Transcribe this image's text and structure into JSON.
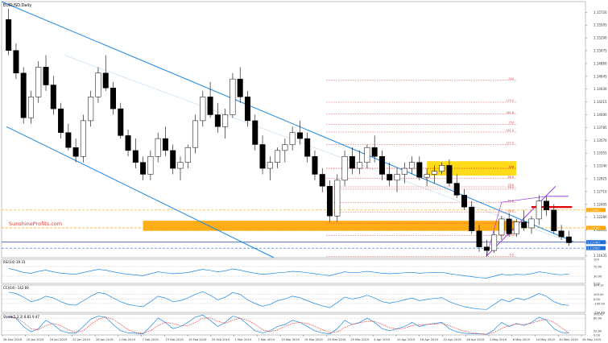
{
  "chart_data": [
    {
      "type": "candlestick",
      "title": "EURUSD,Daily",
      "watermark": "SunshineProfits.com",
      "x_dates": [
        "28 Dec 2018",
        "10 Jan 2019",
        "16 Jan 2019",
        "22 Jan 2019",
        "28 Jan 2019",
        "1 Feb 2019",
        "7 Feb 2019",
        "13 Feb 2019",
        "19 Feb 2019",
        "25 Feb 2019",
        "1 Mar 2019",
        "7 Mar 2019",
        "13 Mar 2019",
        "19 Mar 2019",
        "25 Mar 2019",
        "29 Mar 2019",
        "4 Apr 2019",
        "10 Apr 2019",
        "16 Apr 2019",
        "22 Apr 2019",
        "26 Apr 2019",
        "2 May 2019",
        "8 May 2019",
        "14 May 2019",
        "20 May 2019",
        "26 May 2019"
      ],
      "y_ticks": [
        "1.15720",
        "1.15505",
        "1.15290",
        "1.15075",
        "1.14860",
        "1.14645",
        "1.14430",
        "1.14215",
        "1.14000",
        "1.13785",
        "1.13570",
        "1.13355",
        "1.13140",
        "1.12925",
        "1.12710",
        "1.12495",
        "1.12280",
        "1.12065",
        "1.11850",
        "1.11635"
      ],
      "ylim": [
        1.116,
        1.159
      ],
      "price_labels": [
        {
          "text": "1.12400",
          "color": "#FFA500"
        },
        {
          "text": "1.12100",
          "color": "#FFA500"
        },
        {
          "text": "1.11700",
          "color": "#1E6FD9"
        },
        {
          "text": "1.11500",
          "color": "#1E6FD9"
        }
      ],
      "fib_labels": [
        "100",
        "0.0",
        "23.6",
        "38.2",
        "50.0",
        "61.8",
        "76.4",
        "78.6",
        "88.6",
        "100",
        "127.2",
        "141.4",
        "150",
        "161.8",
        "175.0",
        "200"
      ],
      "fib_prices": [
        1.131,
        1.1162,
        1.1197,
        1.1218,
        1.1236,
        1.1253,
        1.1275,
        1.1279,
        1.1293,
        1.131,
        1.135,
        1.1371,
        1.1384,
        1.1401,
        1.1421,
        1.1458
      ],
      "candles": [
        {
          "o": 1.156,
          "h": 1.1578,
          "l": 1.15,
          "c": 1.1508
        },
        {
          "o": 1.1508,
          "h": 1.152,
          "l": 1.146,
          "c": 1.147
        },
        {
          "o": 1.147,
          "h": 1.148,
          "l": 1.1385,
          "c": 1.1395
        },
        {
          "o": 1.1395,
          "h": 1.144,
          "l": 1.1385,
          "c": 1.143
        },
        {
          "o": 1.143,
          "h": 1.149,
          "l": 1.142,
          "c": 1.148
        },
        {
          "o": 1.148,
          "h": 1.15,
          "l": 1.144,
          "c": 1.145
        },
        {
          "o": 1.145,
          "h": 1.1465,
          "l": 1.14,
          "c": 1.141
        },
        {
          "o": 1.141,
          "h": 1.142,
          "l": 1.136,
          "c": 1.137
        },
        {
          "o": 1.137,
          "h": 1.1385,
          "l": 1.134,
          "c": 1.1345
        },
        {
          "o": 1.1345,
          "h": 1.136,
          "l": 1.132,
          "c": 1.133
        },
        {
          "o": 1.133,
          "h": 1.14,
          "l": 1.132,
          "c": 1.139
        },
        {
          "o": 1.139,
          "h": 1.144,
          "l": 1.138,
          "c": 1.143
        },
        {
          "o": 1.143,
          "h": 1.148,
          "l": 1.142,
          "c": 1.147
        },
        {
          "o": 1.147,
          "h": 1.15,
          "l": 1.144,
          "c": 1.1445
        },
        {
          "o": 1.1445,
          "h": 1.1455,
          "l": 1.14,
          "c": 1.141
        },
        {
          "o": 1.141,
          "h": 1.142,
          "l": 1.136,
          "c": 1.1365
        },
        {
          "o": 1.1365,
          "h": 1.1375,
          "l": 1.133,
          "c": 1.134
        },
        {
          "o": 1.134,
          "h": 1.136,
          "l": 1.131,
          "c": 1.132
        },
        {
          "o": 1.132,
          "h": 1.133,
          "l": 1.129,
          "c": 1.13
        },
        {
          "o": 1.13,
          "h": 1.134,
          "l": 1.129,
          "c": 1.133
        },
        {
          "o": 1.133,
          "h": 1.137,
          "l": 1.132,
          "c": 1.136
        },
        {
          "o": 1.136,
          "h": 1.138,
          "l": 1.133,
          "c": 1.134
        },
        {
          "o": 1.134,
          "h": 1.135,
          "l": 1.13,
          "c": 1.131
        },
        {
          "o": 1.131,
          "h": 1.133,
          "l": 1.129,
          "c": 1.132
        },
        {
          "o": 1.132,
          "h": 1.135,
          "l": 1.131,
          "c": 1.1345
        },
        {
          "o": 1.1345,
          "h": 1.14,
          "l": 1.1335,
          "c": 1.139
        },
        {
          "o": 1.139,
          "h": 1.144,
          "l": 1.138,
          "c": 1.143
        },
        {
          "o": 1.143,
          "h": 1.1455,
          "l": 1.1395,
          "c": 1.14
        },
        {
          "o": 1.14,
          "h": 1.142,
          "l": 1.137,
          "c": 1.138
        },
        {
          "o": 1.138,
          "h": 1.141,
          "l": 1.136,
          "c": 1.14
        },
        {
          "o": 1.14,
          "h": 1.147,
          "l": 1.1395,
          "c": 1.146
        },
        {
          "o": 1.146,
          "h": 1.148,
          "l": 1.142,
          "c": 1.143
        },
        {
          "o": 1.143,
          "h": 1.144,
          "l": 1.138,
          "c": 1.139
        },
        {
          "o": 1.139,
          "h": 1.14,
          "l": 1.134,
          "c": 1.135
        },
        {
          "o": 1.135,
          "h": 1.1365,
          "l": 1.13,
          "c": 1.131
        },
        {
          "o": 1.131,
          "h": 1.133,
          "l": 1.129,
          "c": 1.132
        },
        {
          "o": 1.132,
          "h": 1.1345,
          "l": 1.131,
          "c": 1.134
        },
        {
          "o": 1.134,
          "h": 1.136,
          "l": 1.132,
          "c": 1.135
        },
        {
          "o": 1.135,
          "h": 1.138,
          "l": 1.134,
          "c": 1.137
        },
        {
          "o": 1.137,
          "h": 1.139,
          "l": 1.135,
          "c": 1.136
        },
        {
          "o": 1.136,
          "h": 1.137,
          "l": 1.132,
          "c": 1.133
        },
        {
          "o": 1.133,
          "h": 1.134,
          "l": 1.129,
          "c": 1.13
        },
        {
          "o": 1.13,
          "h": 1.131,
          "l": 1.127,
          "c": 1.128
        },
        {
          "o": 1.128,
          "h": 1.129,
          "l": 1.122,
          "c": 1.123
        },
        {
          "o": 1.123,
          "h": 1.13,
          "l": 1.122,
          "c": 1.129
        },
        {
          "o": 1.129,
          "h": 1.134,
          "l": 1.128,
          "c": 1.133
        },
        {
          "o": 1.133,
          "h": 1.1345,
          "l": 1.13,
          "c": 1.131
        },
        {
          "o": 1.131,
          "h": 1.134,
          "l": 1.13,
          "c": 1.132
        },
        {
          "o": 1.132,
          "h": 1.135,
          "l": 1.131,
          "c": 1.1345
        },
        {
          "o": 1.1345,
          "h": 1.1365,
          "l": 1.132,
          "c": 1.133
        },
        {
          "o": 1.133,
          "h": 1.134,
          "l": 1.129,
          "c": 1.13
        },
        {
          "o": 1.13,
          "h": 1.132,
          "l": 1.128,
          "c": 1.129
        },
        {
          "o": 1.129,
          "h": 1.131,
          "l": 1.127,
          "c": 1.13
        },
        {
          "o": 1.13,
          "h": 1.132,
          "l": 1.1285,
          "c": 1.131
        },
        {
          "o": 1.131,
          "h": 1.133,
          "l": 1.13,
          "c": 1.132
        },
        {
          "o": 1.132,
          "h": 1.133,
          "l": 1.129,
          "c": 1.1295
        },
        {
          "o": 1.1295,
          "h": 1.131,
          "l": 1.128,
          "c": 1.13
        },
        {
          "o": 1.13,
          "h": 1.1315,
          "l": 1.1285,
          "c": 1.1305
        },
        {
          "o": 1.1305,
          "h": 1.132,
          "l": 1.13,
          "c": 1.1315
        },
        {
          "o": 1.1315,
          "h": 1.1325,
          "l": 1.128,
          "c": 1.1285
        },
        {
          "o": 1.1285,
          "h": 1.13,
          "l": 1.126,
          "c": 1.1265
        },
        {
          "o": 1.1265,
          "h": 1.1275,
          "l": 1.124,
          "c": 1.1245
        },
        {
          "o": 1.1245,
          "h": 1.1255,
          "l": 1.12,
          "c": 1.1205
        },
        {
          "o": 1.1205,
          "h": 1.1215,
          "l": 1.117,
          "c": 1.1178
        },
        {
          "o": 1.1178,
          "h": 1.119,
          "l": 1.1162,
          "c": 1.1172
        },
        {
          "o": 1.1172,
          "h": 1.1205,
          "l": 1.1168,
          "c": 1.1198
        },
        {
          "o": 1.1198,
          "h": 1.123,
          "l": 1.119,
          "c": 1.1225
        },
        {
          "o": 1.1225,
          "h": 1.1235,
          "l": 1.1195,
          "c": 1.12
        },
        {
          "o": 1.12,
          "h": 1.1225,
          "l": 1.1195,
          "c": 1.122
        },
        {
          "o": 1.122,
          "h": 1.124,
          "l": 1.1205,
          "c": 1.121
        },
        {
          "o": 1.121,
          "h": 1.123,
          "l": 1.12,
          "c": 1.1225
        },
        {
          "o": 1.1225,
          "h": 1.1265,
          "l": 1.1215,
          "c": 1.1255
        },
        {
          "o": 1.1255,
          "h": 1.1263,
          "l": 1.123,
          "c": 1.124
        },
        {
          "o": 1.124,
          "h": 1.125,
          "l": 1.12,
          "c": 1.1205
        },
        {
          "o": 1.1205,
          "h": 1.1215,
          "l": 1.119,
          "c": 1.1195
        },
        {
          "o": 1.1195,
          "h": 1.1205,
          "l": 1.118,
          "c": 1.1185
        }
      ],
      "channel_lines_color": "#1E88E5",
      "triangle_color": "#8A2BE2",
      "zone_color": "#FFA500",
      "top_zone_color": "#FFD700",
      "resistance_color": "#E00000"
    },
    {
      "type": "line",
      "title": "RSI(14) 39.31",
      "y_ticks": [
        "100",
        "70.00",
        "30.00",
        "0.00"
      ],
      "ylim": [
        0,
        100
      ],
      "series": [
        {
          "name": "RSI(14)",
          "values": [
            62,
            55,
            45,
            42,
            50,
            55,
            48,
            42,
            40,
            38,
            45,
            52,
            58,
            55,
            48,
            42,
            38,
            35,
            32,
            40,
            48,
            44,
            40,
            42,
            45,
            52,
            58,
            54,
            48,
            52,
            60,
            55,
            48,
            42,
            38,
            40,
            44,
            46,
            50,
            48,
            44,
            40,
            36,
            32,
            40,
            48,
            44,
            46,
            50,
            46,
            42,
            40,
            42,
            44,
            46,
            42,
            44,
            45,
            46,
            40,
            36,
            32,
            28,
            24,
            22,
            30,
            38,
            34,
            38,
            36,
            40,
            48,
            44,
            38,
            36,
            39
          ]
        }
      ],
      "color": "#1E88E5"
    },
    {
      "type": "line",
      "title": "CCI(14) -142.69",
      "y_ticks": [
        "304.10",
        "100.00",
        "0.00",
        "-100.00",
        "-294.46"
      ],
      "ylim": [
        -294.46,
        304.1
      ],
      "series": [
        {
          "name": "CCI(14)",
          "values": [
            150,
            120,
            40,
            -60,
            -20,
            60,
            20,
            -60,
            -120,
            -140,
            -40,
            60,
            140,
            110,
            20,
            -60,
            -120,
            -150,
            -170,
            -60,
            60,
            20,
            -60,
            -40,
            20,
            100,
            160,
            80,
            -20,
            40,
            140,
            100,
            -20,
            -100,
            -160,
            -120,
            -40,
            0,
            60,
            30,
            -40,
            -100,
            -150,
            -190,
            -80,
            40,
            0,
            30,
            80,
            20,
            -60,
            -90,
            -60,
            -20,
            20,
            -40,
            -10,
            10,
            30,
            -60,
            -120,
            -170,
            -200,
            -220,
            -230,
            -120,
            -10,
            -60,
            20,
            -20,
            40,
            120,
            60,
            -60,
            -120,
            -142
          ]
        }
      ],
      "color": "#1E88E5"
    },
    {
      "type": "line",
      "title": "Stoch(5,3,3) 8.81 9.47",
      "y_ticks": [
        "100.00",
        "80.00",
        "20.00",
        "0.00"
      ],
      "ylim": [
        0,
        100
      ],
      "series": [
        {
          "name": "Stoch %K",
          "values": [
            90,
            80,
            40,
            15,
            30,
            70,
            50,
            20,
            10,
            8,
            40,
            75,
            90,
            85,
            50,
            20,
            10,
            8,
            5,
            40,
            80,
            60,
            30,
            40,
            60,
            85,
            95,
            70,
            40,
            60,
            90,
            80,
            50,
            20,
            10,
            20,
            40,
            50,
            70,
            60,
            40,
            20,
            10,
            5,
            30,
            70,
            50,
            60,
            80,
            60,
            30,
            20,
            30,
            40,
            60,
            40,
            50,
            55,
            60,
            30,
            15,
            8,
            5,
            5,
            3,
            25,
            60,
            40,
            55,
            45,
            60,
            85,
            70,
            30,
            12,
            9
          ]
        },
        {
          "name": "Stoch %D",
          "values": [
            85,
            82,
            60,
            30,
            25,
            45,
            55,
            45,
            25,
            12,
            20,
            50,
            75,
            85,
            75,
            50,
            25,
            12,
            8,
            20,
            45,
            60,
            55,
            45,
            45,
            60,
            80,
            82,
            65,
            55,
            70,
            80,
            70,
            50,
            25,
            15,
            25,
            40,
            55,
            60,
            55,
            40,
            25,
            12,
            15,
            35,
            50,
            58,
            65,
            65,
            50,
            35,
            28,
            32,
            45,
            48,
            50,
            52,
            55,
            45,
            30,
            18,
            10,
            6,
            4,
            12,
            32,
            45,
            52,
            50,
            55,
            68,
            75,
            60,
            35,
            10
          ]
        }
      ],
      "colors": [
        "#1E88E5",
        "#E53935"
      ]
    }
  ]
}
